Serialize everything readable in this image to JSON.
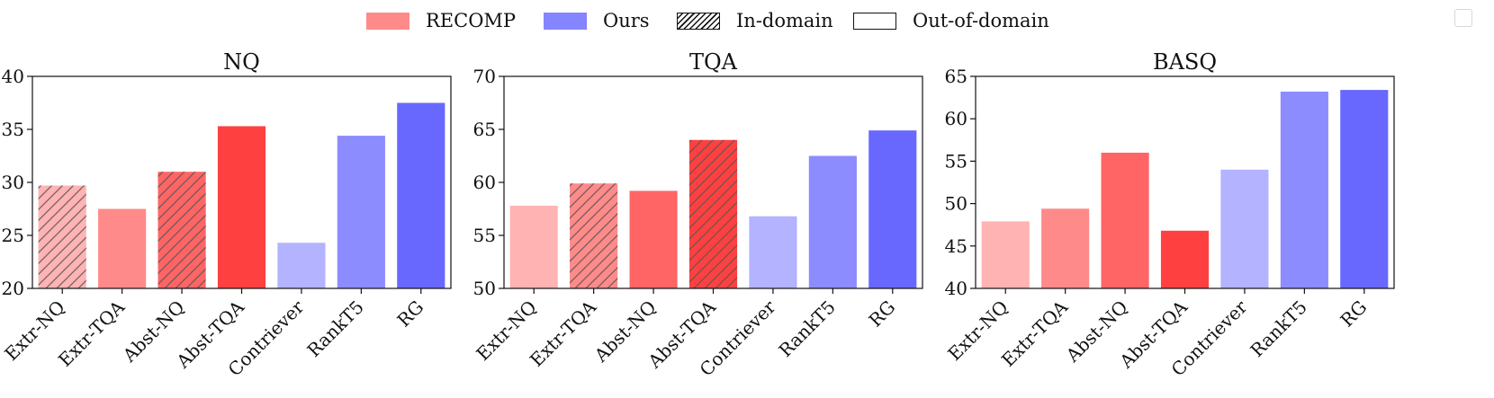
{
  "legend": [
    {
      "label": "RECOMP",
      "kind": "fill",
      "color": "#ff8a8a"
    },
    {
      "label": "Ours",
      "kind": "fill",
      "color": "#8585ff"
    },
    {
      "label": "In-domain",
      "kind": "hatch",
      "color": "#ffffff"
    },
    {
      "label": "Out-of-domain",
      "kind": "empty",
      "color": "#ffffff"
    }
  ],
  "chart_data": [
    {
      "type": "bar",
      "title": "NQ",
      "categories": [
        "Extr-NQ",
        "Extr-TQA",
        "Abst-NQ",
        "Abst-TQA",
        "Contriever",
        "RankT5",
        "RG"
      ],
      "values": [
        29.7,
        27.5,
        31.0,
        35.3,
        24.3,
        34.4,
        37.5
      ],
      "colors": [
        "#ffb3b3",
        "#ff8a8a",
        "#ff6565",
        "#ff4040",
        "#b3b3ff",
        "#8c8cff",
        "#6868ff"
      ],
      "in_domain": [
        true,
        false,
        true,
        false,
        false,
        false,
        false
      ],
      "ylim": [
        20,
        40
      ],
      "yticks": [
        20,
        25,
        30,
        35,
        40
      ],
      "xlabel": "",
      "ylabel": ""
    },
    {
      "type": "bar",
      "title": "TQA",
      "categories": [
        "Extr-NQ",
        "Extr-TQA",
        "Abst-NQ",
        "Abst-TQA",
        "Contriever",
        "RankT5",
        "RG"
      ],
      "values": [
        57.8,
        59.9,
        59.2,
        64.0,
        56.8,
        62.5,
        64.9
      ],
      "colors": [
        "#ffb3b3",
        "#ff8a8a",
        "#ff6565",
        "#ff4040",
        "#b3b3ff",
        "#8c8cff",
        "#6868ff"
      ],
      "in_domain": [
        false,
        true,
        false,
        true,
        false,
        false,
        false
      ],
      "ylim": [
        50,
        70
      ],
      "yticks": [
        50,
        55,
        60,
        65,
        70
      ],
      "xlabel": "",
      "ylabel": ""
    },
    {
      "type": "bar",
      "title": "BASQ",
      "categories": [
        "Extr-NQ",
        "Extr-TQA",
        "Abst-NQ",
        "Abst-TQA",
        "Contriever",
        "RankT5",
        "RG"
      ],
      "values": [
        47.9,
        49.4,
        56.0,
        46.8,
        54.0,
        63.2,
        63.4
      ],
      "colors": [
        "#ffb3b3",
        "#ff8a8a",
        "#ff6565",
        "#ff4040",
        "#b3b3ff",
        "#8c8cff",
        "#6868ff"
      ],
      "in_domain": [
        false,
        false,
        false,
        false,
        false,
        false,
        false
      ],
      "ylim": [
        40,
        65
      ],
      "yticks": [
        40,
        45,
        50,
        55,
        60,
        65
      ],
      "xlabel": "",
      "ylabel": ""
    }
  ]
}
